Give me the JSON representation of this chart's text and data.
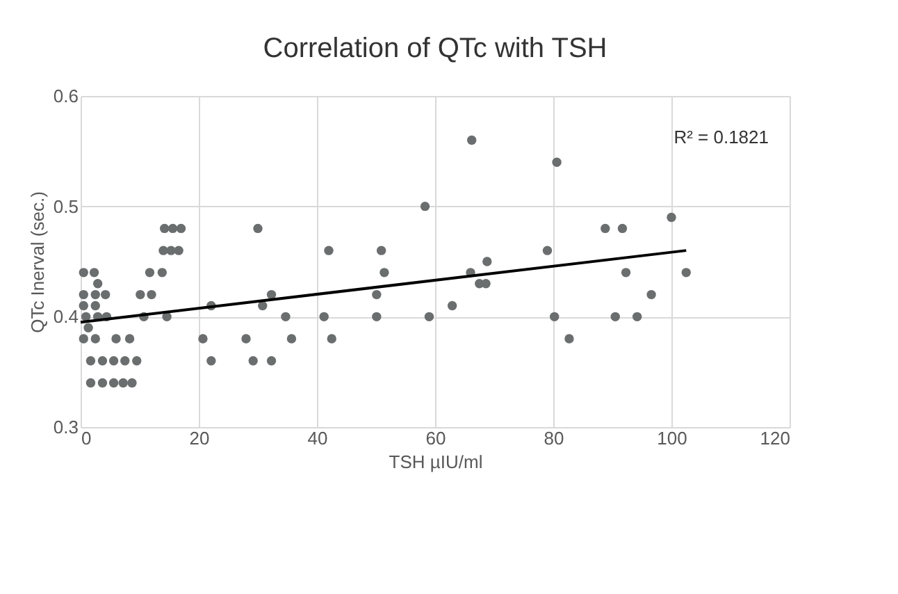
{
  "chart_data": {
    "type": "scatter",
    "title": "Correlation of QTc with TSH",
    "xlabel": "TSH µIU/ml",
    "ylabel": "QTc Inerval (sec.)",
    "xlim": [
      0,
      120
    ],
    "xticks": [
      0,
      20,
      40,
      60,
      80,
      100,
      120
    ],
    "ylim": [
      0.3,
      0.6
    ],
    "yticks": [
      0.3,
      0.4,
      0.5,
      0.6
    ],
    "grid": true,
    "marker": "circle",
    "annotations": [
      "R² = 0.1821"
    ],
    "series": [
      {
        "color": "#6b6e6e",
        "x": [
          14.2,
          15.6,
          17.0,
          14.0,
          15.3,
          16.6,
          0.5,
          2.3,
          11.7,
          13.8,
          2.9,
          0.5,
          2.5,
          4.2,
          10.1,
          12.0,
          0.5,
          2.5,
          0.9,
          2.9,
          4.4,
          10.7,
          14.6,
          1.3,
          0.5,
          2.5,
          6.0,
          8.3,
          1.7,
          3.7,
          5.6,
          7.5,
          9.5,
          1.7,
          3.7,
          5.6,
          7.2,
          8.7,
          20.7,
          22.1,
          22.1,
          28.0,
          29.2,
          30.0,
          30.8,
          32.3,
          32.3,
          34.7,
          35.7,
          41.2,
          42.0,
          42.5,
          50.1,
          50.1,
          50.9,
          51.4,
          58.3,
          59.0,
          62.9,
          66.2,
          66.0,
          67.5,
          68.6,
          68.8,
          79.0,
          80.2,
          80.6,
          82.7,
          88.8,
          91.7,
          92.3,
          90.5,
          94.2,
          96.6,
          100.0,
          102.5
        ],
        "values": [
          0.48,
          0.48,
          0.48,
          0.46,
          0.46,
          0.46,
          0.44,
          0.44,
          0.44,
          0.44,
          0.43,
          0.42,
          0.42,
          0.42,
          0.42,
          0.42,
          0.41,
          0.41,
          0.4,
          0.4,
          0.4,
          0.4,
          0.4,
          0.39,
          0.38,
          0.38,
          0.38,
          0.38,
          0.36,
          0.36,
          0.36,
          0.36,
          0.36,
          0.34,
          0.34,
          0.34,
          0.34,
          0.34,
          0.38,
          0.36,
          0.41,
          0.38,
          0.36,
          0.48,
          0.41,
          0.42,
          0.36,
          0.4,
          0.38,
          0.4,
          0.46,
          0.38,
          0.4,
          0.42,
          0.46,
          0.44,
          0.5,
          0.4,
          0.41,
          0.56,
          0.44,
          0.43,
          0.43,
          0.45,
          0.46,
          0.4,
          0.54,
          0.38,
          0.48,
          0.48,
          0.44,
          0.4,
          0.4,
          0.42,
          0.49,
          0.44
        ]
      },
      {
        "type": "line",
        "marker": "none",
        "color": "#000000",
        "x": [
          0,
          102.5
        ],
        "values": [
          0.395,
          0.46
        ]
      }
    ]
  }
}
